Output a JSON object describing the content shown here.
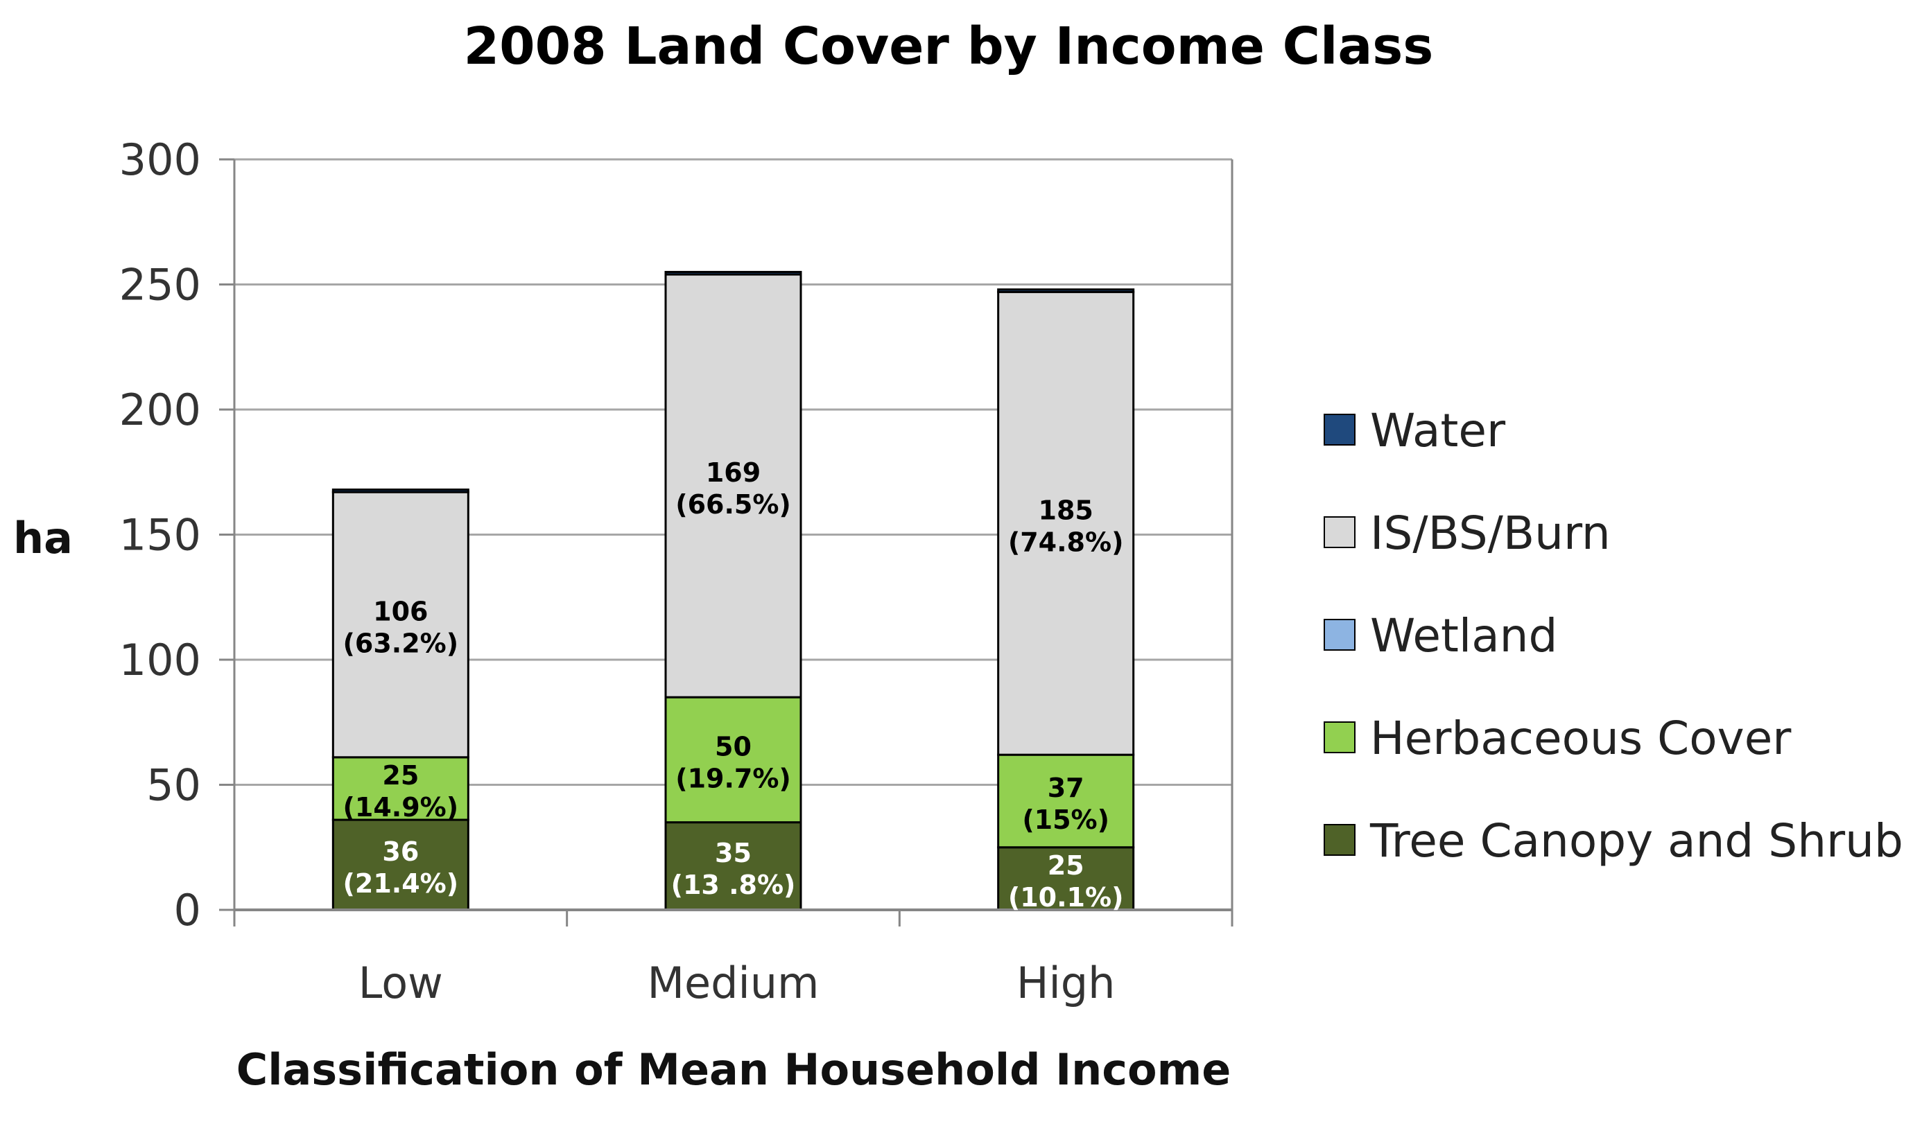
{
  "chart_data": {
    "type": "bar",
    "stacked": true,
    "title": "2008 Land Cover by Income Class",
    "xlabel": "Classification of Mean Household Income",
    "ylabel": "ha",
    "ylim": [
      0,
      300
    ],
    "yticks": [
      0,
      50,
      100,
      150,
      200,
      250,
      300
    ],
    "grid": true,
    "legend_position": "right",
    "categories": [
      "Low",
      "Medium",
      "High"
    ],
    "series": [
      {
        "name": "Tree Canopy and Shrub",
        "color": "#4f6228",
        "label_color": "#ffffff",
        "values": [
          36,
          35,
          25
        ],
        "value_labels": [
          "36",
          "35",
          "25"
        ],
        "pct_labels": [
          "(21.4%)",
          "(13 .8%)",
          "(10.1%)"
        ]
      },
      {
        "name": "Herbaceous Cover",
        "color": "#92d050",
        "label_color": "#000000",
        "values": [
          25,
          50,
          37
        ],
        "value_labels": [
          "25",
          "50",
          "37"
        ],
        "pct_labels": [
          "(14.9%)",
          "(19.7%)",
          "(15%)"
        ]
      },
      {
        "name": "Wetland",
        "color": "#8db4e2",
        "label_color": "#000000",
        "values": [
          0,
          0,
          0
        ],
        "value_labels": [
          "",
          "",
          ""
        ],
        "pct_labels": [
          "",
          "",
          ""
        ]
      },
      {
        "name": "IS/BS/Burn",
        "color": "#d9d9d9",
        "label_color": "#000000",
        "values": [
          106,
          169,
          185
        ],
        "value_labels": [
          "106",
          "169",
          "185"
        ],
        "pct_labels": [
          "(63.2%)",
          "(66.5%)",
          "(74.8%)"
        ]
      },
      {
        "name": "Water",
        "color": "#1f497d",
        "label_color": "#ffffff",
        "values": [
          1,
          1,
          1
        ],
        "value_labels": [
          "",
          "",
          ""
        ],
        "pct_labels": [
          "",
          "",
          ""
        ]
      }
    ],
    "legend_order": [
      "Water",
      "IS/BS/Burn",
      "Wetland",
      "Herbaceous Cover",
      "Tree Canopy and Shrub"
    ]
  }
}
